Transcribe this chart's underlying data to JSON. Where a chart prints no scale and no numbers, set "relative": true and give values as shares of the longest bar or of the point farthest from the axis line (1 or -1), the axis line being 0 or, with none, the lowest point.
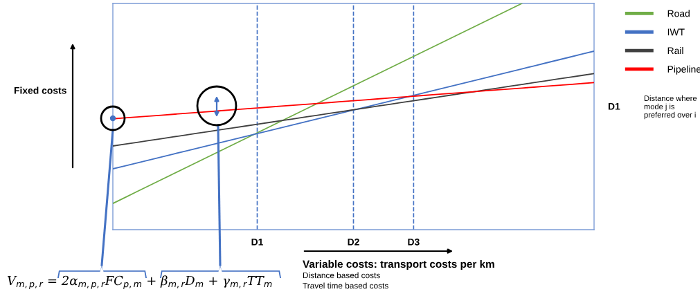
{
  "chart_data": {
    "type": "line",
    "relative": true,
    "ylabel": "Fixed costs",
    "xlabel": "Variable costs: transport costs per km",
    "categories": [
      null,
      null,
      null,
      null,
      null,
      null,
      null,
      null,
      null,
      null,
      null,
      null,
      "D1",
      null,
      null,
      null,
      null,
      null,
      null,
      null,
      "D2",
      null,
      null,
      null,
      null,
      "D3",
      null,
      null,
      null,
      null,
      null,
      null,
      null,
      null,
      null,
      null,
      null,
      null,
      null,
      null,
      null
    ],
    "tick_labels": "x",
    "grid": "x",
    "legend": "right",
    "line_style": "solid",
    "marker": "none",
    "series": [
      {
        "name": "Road",
        "color": "#70ad47",
        "values": [
          0.116,
          0.142,
          0.168,
          0.194,
          0.22,
          0.246,
          0.272,
          0.298,
          0.324,
          0.35,
          0.376,
          0.402,
          0.428,
          0.454,
          0.48,
          0.506,
          0.532,
          0.558,
          0.584,
          0.61,
          0.636,
          0.662,
          0.688,
          0.714,
          0.74,
          0.766,
          0.792,
          0.818,
          0.844,
          0.87,
          0.896,
          0.922,
          0.948,
          0.974,
          1.0,
          null,
          null,
          null,
          null,
          null,
          null
        ]
      },
      {
        "name": "IWT",
        "color": "#4472c4",
        "values": [
          0.269,
          0.282,
          0.295,
          0.308,
          0.321,
          0.334,
          0.347,
          0.36,
          0.373,
          0.386,
          0.399,
          0.412,
          0.425,
          0.438,
          0.451,
          0.464,
          0.477,
          0.49,
          0.503,
          0.516,
          0.529,
          0.542,
          0.555,
          0.568,
          0.581,
          0.594,
          0.607,
          0.62,
          0.633,
          0.646,
          0.659,
          0.672,
          0.685,
          0.698,
          0.711,
          0.724,
          0.737,
          0.75,
          0.763,
          0.776,
          0.789
        ]
      },
      {
        "name": "Rail",
        "color": "#404040",
        "values": [
          0.37,
          0.378,
          0.386,
          0.394,
          0.402,
          0.41,
          0.418,
          0.426,
          0.434,
          0.442,
          0.45,
          0.458,
          0.466,
          0.474,
          0.482,
          0.49,
          0.498,
          0.506,
          0.514,
          0.522,
          0.53,
          0.538,
          0.546,
          0.554,
          0.562,
          0.57,
          0.578,
          0.586,
          0.594,
          0.602,
          0.61,
          0.618,
          0.626,
          0.634,
          0.642,
          0.65,
          0.658,
          0.666,
          0.674,
          0.682,
          0.69
        ]
      },
      {
        "name": "Pipeline",
        "color": "#ff0000",
        "values": [
          0.49,
          0.494,
          0.498,
          0.502,
          0.506,
          0.51,
          0.514,
          0.518,
          0.522,
          0.526,
          0.53,
          0.534,
          0.538,
          0.542,
          0.546,
          0.55,
          0.554,
          0.558,
          0.562,
          0.566,
          0.57,
          0.574,
          0.578,
          0.582,
          0.586,
          0.59,
          0.594,
          0.598,
          0.602,
          0.606,
          0.61,
          0.614,
          0.618,
          0.622,
          0.626,
          0.63,
          0.634,
          0.638,
          0.642,
          0.646,
          0.65
        ]
      }
    ],
    "annotations": [
      "V$_{m,p,r}$ = 2α$_{m,p,r}$FC$_{p,m}$ + β$_{m,r}$D$_{m}$ + γ$_{m,r}$TT$_{m}$",
      "Distance based costs",
      "Travel time based costs",
      "D1",
      "Distance where mode j is preferred over i"
    ]
  }
}
